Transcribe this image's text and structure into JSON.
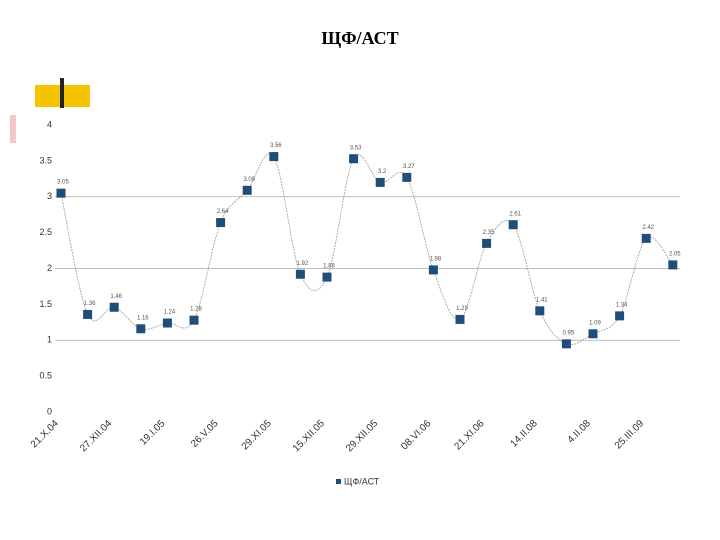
{
  "chart_data": {
    "type": "line",
    "title": "ЩФ/АСТ",
    "categories": [
      "21.X.04",
      null,
      "27.XII.04",
      null,
      "19.I.05",
      null,
      "26.V.05",
      null,
      "29.XI.05",
      null,
      "15.XII.05",
      null,
      "29.XII.05",
      null,
      "08.VI.06",
      null,
      "21.XI.06",
      null,
      "14.II.08",
      null,
      "4.II.08",
      null,
      "25.III.09",
      null
    ],
    "series": [
      {
        "name": "ЩФ/АСТ",
        "color": "#1f4e79",
        "values": [
          3.05,
          1.36,
          1.46,
          1.16,
          1.24,
          1.28,
          2.64,
          3.09,
          3.56,
          1.92,
          1.88,
          3.53,
          3.2,
          3.27,
          1.98,
          1.29,
          2.35,
          2.61,
          1.41,
          0.95,
          1.09,
          1.34,
          2.42,
          2.05
        ]
      }
    ],
    "ylim": [
      0,
      4
    ],
    "yticks": [
      0,
      0.5,
      1,
      1.5,
      2,
      2.5,
      3,
      3.5,
      4
    ],
    "grid": true
  }
}
